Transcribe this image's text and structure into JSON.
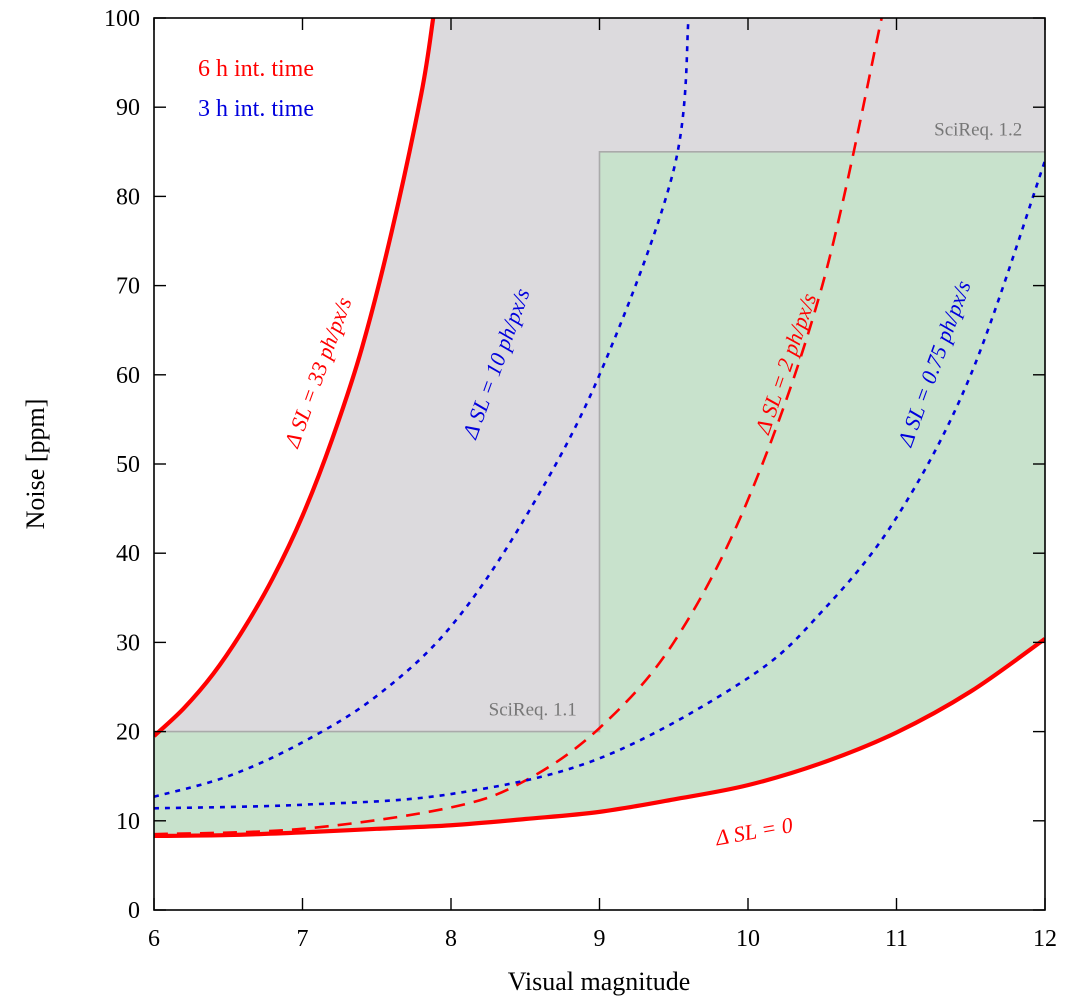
{
  "chart_data": {
    "type": "line",
    "xlabel": "Visual magnitude",
    "ylabel": "Noise [ppm]",
    "xlim": [
      6,
      12
    ],
    "ylim": [
      0,
      100
    ],
    "xticks": [
      6,
      7,
      8,
      9,
      10,
      11,
      12
    ],
    "yticks": [
      0,
      10,
      20,
      30,
      40,
      50,
      60,
      70,
      80,
      90,
      100
    ],
    "grid": false,
    "legend": {
      "placement": "top-left",
      "entries": [
        {
          "label": "6 h int. time",
          "color": "#ff0000"
        },
        {
          "label": "3 h int. time",
          "color": "#0000dd"
        }
      ]
    },
    "regions": [
      {
        "label": "SciReq. 1.1",
        "x_range": [
          6,
          9
        ],
        "y_limit": 20,
        "fill": "#c8e2cc"
      },
      {
        "label": "SciReq. 1.2",
        "x_range": [
          9,
          12
        ],
        "y_limit": 85,
        "fill": "#c8e2cc"
      }
    ],
    "region_above_fill": "#dcdadd",
    "series": [
      {
        "label": "Δ SL = 0",
        "color": "#ff0000",
        "style": "solid",
        "x": [
          6,
          6.5,
          7,
          7.5,
          8,
          8.5,
          9,
          9.5,
          10,
          10.5,
          11,
          11.5,
          12
        ],
        "y": [
          8.3,
          8.4,
          8.7,
          9.1,
          9.5,
          10.2,
          11.0,
          12.4,
          14.0,
          16.5,
          19.9,
          24.5,
          30.4
        ]
      },
      {
        "label": "Δ SL = 33 ph/px/s",
        "color": "#ff0000",
        "style": "solid",
        "x": [
          6,
          6.2,
          6.4,
          6.6,
          6.8,
          7,
          7.2,
          7.4,
          7.6,
          7.8,
          7.88
        ],
        "y": [
          19.5,
          22.6,
          26.5,
          31.4,
          37.2,
          44.2,
          52.8,
          63.0,
          76.0,
          91.5,
          100
        ]
      },
      {
        "label": "Δ SL = 10 ph/px/s",
        "color": "#0000dd",
        "style": "dotted",
        "x": [
          6,
          6.5,
          7,
          7.5,
          8,
          8.5,
          9,
          9.5,
          9.6
        ],
        "y": [
          12.7,
          15.0,
          18.8,
          24.0,
          31.8,
          44.0,
          60.0,
          83.0,
          100
        ]
      },
      {
        "label": "Δ SL = 2 ph/px/s",
        "color": "#ff0000",
        "style": "dashed",
        "x": [
          6,
          7,
          8,
          8.5,
          9,
          9.5,
          10,
          10.5,
          10.9
        ],
        "y": [
          8.5,
          9.1,
          11.5,
          14.5,
          20.4,
          30.0,
          46.0,
          70.0,
          100
        ]
      },
      {
        "label": "Δ SL = 0.75 ph/px/s",
        "color": "#0000dd",
        "style": "dotted",
        "x": [
          6,
          7,
          8,
          9,
          10,
          10.5,
          11,
          11.5,
          12
        ],
        "y": [
          11.4,
          11.8,
          13.0,
          17.0,
          26.0,
          33.5,
          44.0,
          60.0,
          84.0
        ]
      }
    ],
    "annotations": [
      {
        "text": "Δ SL = 33 ph/px/s",
        "x": 7.15,
        "y": 60,
        "color": "#ff0000",
        "angle": -70
      },
      {
        "text": "Δ SL = 10 ph/px/s",
        "x": 8.35,
        "y": 61,
        "color": "#0000dd",
        "angle": -70
      },
      {
        "text": "Δ SL = 2 ph/px/s",
        "x": 10.3,
        "y": 61,
        "color": "#ff0000",
        "angle": -71
      },
      {
        "text": "Δ SL = 0.75 ph/px/s",
        "x": 11.3,
        "y": 61,
        "color": "#0000dd",
        "angle": -70
      },
      {
        "text": "Δ SL = 0",
        "x": 10.05,
        "y": 8.0,
        "color": "#ff0000",
        "angle": -10
      },
      {
        "text": "SciReq. 1.1",
        "x": 8.55,
        "y": 21.8,
        "color": "#777777",
        "angle": 0
      },
      {
        "text": "SciReq. 1.2",
        "x": 11.55,
        "y": 86.8,
        "color": "#777777",
        "angle": 0
      }
    ]
  }
}
